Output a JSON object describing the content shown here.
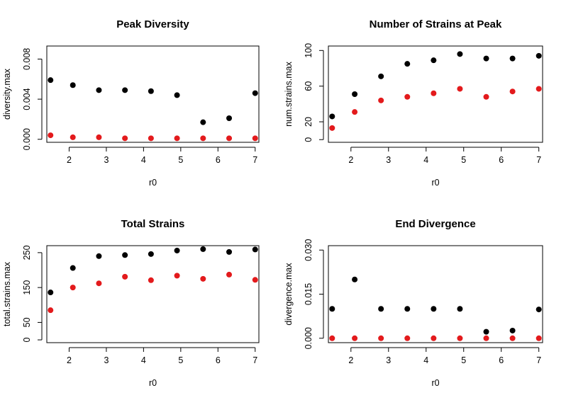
{
  "chart_data": [
    {
      "type": "scatter",
      "title": "Peak Diversity",
      "xlabel": "r0",
      "ylabel": "diversity.max",
      "xticks": [
        "2",
        "3",
        "4",
        "5",
        "6",
        "7"
      ],
      "yticks": [
        "0.000",
        "0.004",
        "0.008"
      ],
      "xlim": [
        1.4,
        7.1
      ],
      "ylim": [
        -0.0003,
        0.0093
      ],
      "x": [
        1.5,
        2.1,
        2.8,
        3.5,
        4.2,
        4.9,
        5.6,
        6.3,
        7.0
      ],
      "series": [
        {
          "color": "#000000",
          "values": [
            0.0059,
            0.0054,
            0.0049,
            0.0049,
            0.0048,
            0.0044,
            0.0017,
            0.0021,
            0.0046
          ]
        },
        {
          "color": "#e31a1c",
          "values": [
            0.0004,
            0.0002,
            0.0002,
            0.0001,
            0.0001,
            0.0001,
            0.0001,
            0.0001,
            0.0001
          ]
        }
      ]
    },
    {
      "type": "scatter",
      "title": "Number of Strains at Peak",
      "xlabel": "r0",
      "ylabel": "num.strains.max",
      "xticks": [
        "2",
        "3",
        "4",
        "5",
        "6",
        "7"
      ],
      "yticks": [
        "0",
        "20",
        "60",
        "100"
      ],
      "xlim": [
        1.4,
        7.1
      ],
      "ylim": [
        -3,
        105
      ],
      "x": [
        1.5,
        2.1,
        2.8,
        3.5,
        4.2,
        4.9,
        5.6,
        6.3,
        7.0
      ],
      "series": [
        {
          "color": "#000000",
          "values": [
            26,
            51,
            71,
            85,
            89,
            96,
            91,
            91,
            94
          ]
        },
        {
          "color": "#e31a1c",
          "values": [
            13,
            31,
            44,
            48,
            52,
            57,
            48,
            54,
            57
          ]
        }
      ]
    },
    {
      "type": "scatter",
      "title": "Total Strains",
      "xlabel": "r0",
      "ylabel": "total.strains.max",
      "xticks": [
        "2",
        "3",
        "4",
        "5",
        "6",
        "7"
      ],
      "yticks": [
        "0",
        "50",
        "150",
        "250"
      ],
      "xlim": [
        1.4,
        7.1
      ],
      "ylim": [
        -8,
        270
      ],
      "x": [
        1.5,
        2.1,
        2.8,
        3.5,
        4.2,
        4.9,
        5.6,
        6.3,
        7.0
      ],
      "series": [
        {
          "color": "#000000",
          "values": [
            136,
            206,
            240,
            243,
            246,
            256,
            260,
            252,
            259
          ]
        },
        {
          "color": "#e31a1c",
          "values": [
            85,
            150,
            162,
            181,
            171,
            184,
            175,
            187,
            172
          ]
        }
      ]
    },
    {
      "type": "scatter",
      "title": "End Divergence",
      "xlabel": "r0",
      "ylabel": "divergence.max",
      "xticks": [
        "2",
        "3",
        "4",
        "5",
        "6",
        "7"
      ],
      "yticks": [
        "0.000",
        "0.015",
        "0.030"
      ],
      "xlim": [
        1.4,
        7.1
      ],
      "ylim": [
        -0.0015,
        0.0315
      ],
      "x": [
        1.5,
        2.1,
        2.8,
        3.5,
        4.2,
        4.9,
        5.6,
        6.3,
        7.0
      ],
      "series": [
        {
          "color": "#000000",
          "values": [
            0.01,
            0.02,
            0.01,
            0.01,
            0.01,
            0.01,
            0.0022,
            0.0026,
            0.0098
          ]
        },
        {
          "color": "#e31a1c",
          "values": [
            0.0,
            0.0,
            0.0,
            0.0,
            0.0,
            0.0,
            0.0,
            0.0,
            0.0
          ]
        }
      ]
    }
  ]
}
